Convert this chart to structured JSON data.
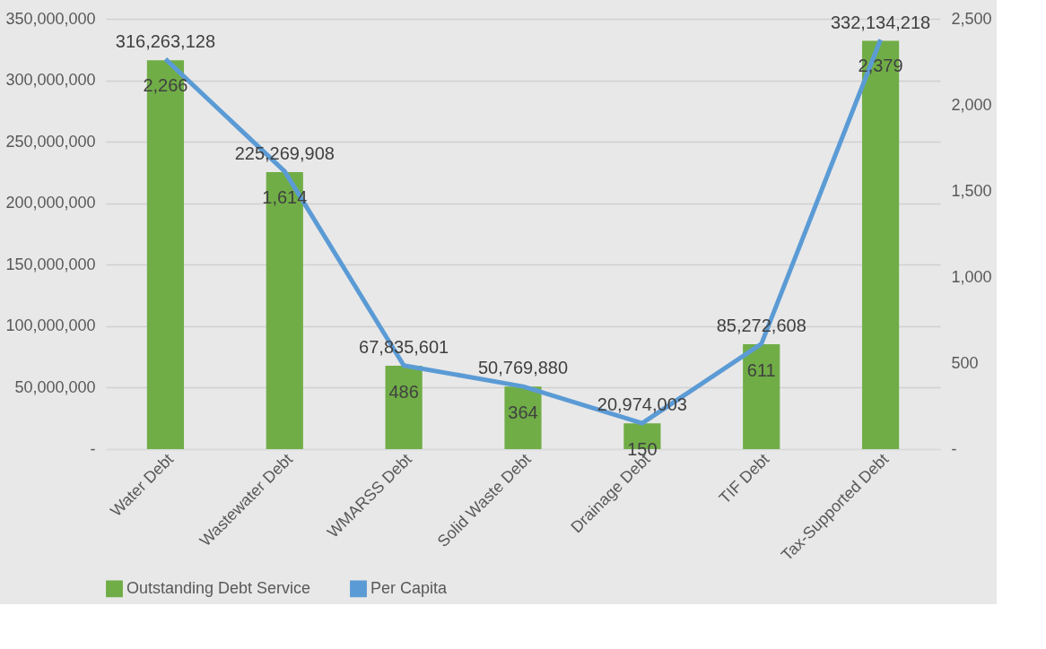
{
  "chart_data": {
    "type": "bar",
    "categories": [
      "Water Debt",
      "Wastewater Debt",
      "WMARSS Debt",
      "Solid Waste Debt",
      "Drainage Debt",
      "TIF Debt",
      "Tax-Supported Debt"
    ],
    "series": [
      {
        "name": "Outstanding Debt Service",
        "color": "#70ad47",
        "values": [
          316263128,
          225269908,
          67835601,
          50769880,
          20974003,
          85272608,
          332134218
        ],
        "value_labels": [
          "316,263,128",
          "225,269,908",
          "67,835,601",
          "50,769,880",
          "20,974,003",
          "85,272,608",
          "332,134,218"
        ]
      },
      {
        "name": "Per Capita",
        "type": "line",
        "axis": "y2",
        "color": "#5b9bd5",
        "values": [
          2266,
          1614,
          486,
          364,
          150,
          611,
          2379
        ],
        "value_labels": [
          "2,266",
          "1,614",
          "486",
          "364",
          "150",
          "611",
          "2,379"
        ]
      }
    ],
    "ylim": [
      0,
      350000000
    ],
    "yticks": [
      {
        "value": 0,
        "label": "-"
      },
      {
        "value": 50000000,
        "label": "50,000,000"
      },
      {
        "value": 100000000,
        "label": "100,000,000"
      },
      {
        "value": 150000000,
        "label": "150,000,000"
      },
      {
        "value": 200000000,
        "label": "200,000,000"
      },
      {
        "value": 250000000,
        "label": "250,000,000"
      },
      {
        "value": 300000000,
        "label": "300,000,000"
      },
      {
        "value": 350000000,
        "label": "350,000,000"
      }
    ],
    "y2lim": [
      0,
      2500
    ],
    "y2ticks": [
      {
        "value": 0,
        "label": "-"
      },
      500,
      {
        "value": 1000,
        "label": "1,000"
      },
      {
        "value": 1500,
        "label": "1,500"
      },
      {
        "value": 2000,
        "label": "2,000"
      },
      {
        "value": 2500,
        "label": "2,500"
      }
    ],
    "grid": "y",
    "legend": "bottom",
    "marker": "none",
    "line_style": "solid"
  }
}
